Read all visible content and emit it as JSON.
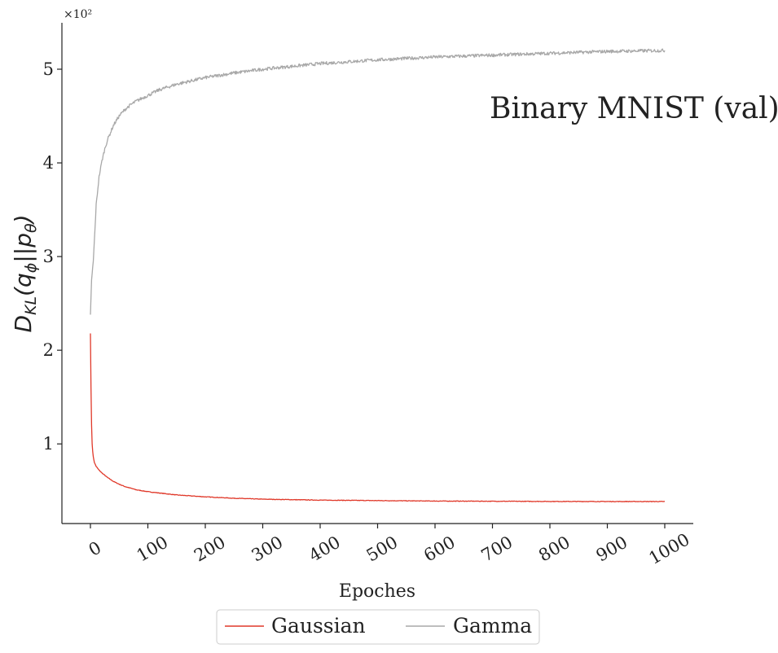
{
  "chart_data": {
    "type": "line",
    "annotation": "Binary MNIST (val)",
    "xlabel": "Epoches",
    "ylabel": {
      "main": "D",
      "sub": "KL",
      "open": "(q",
      "sub2": "ϕ",
      "mid": "||p",
      "sub3": "θ",
      "close": ")"
    },
    "y_scale_label": "×10²",
    "xlim": [
      -50,
      1050
    ],
    "ylim": [
      0.15,
      5.5
    ],
    "x_ticks": [
      0,
      100,
      200,
      300,
      400,
      500,
      600,
      700,
      800,
      900,
      1000
    ],
    "y_ticks": [
      1,
      2,
      3,
      4,
      5
    ],
    "legend_position": "bottom-center",
    "grid": false,
    "series": [
      {
        "name": "Gaussian",
        "color": "#e0392a",
        "x": [
          0,
          1,
          2,
          3,
          4,
          5,
          7,
          10,
          15,
          20,
          30,
          40,
          50,
          60,
          80,
          100,
          150,
          200,
          250,
          300,
          400,
          500,
          600,
          700,
          800,
          900,
          1000
        ],
        "y": [
          2.18,
          1.6,
          1.2,
          1.0,
          0.92,
          0.86,
          0.8,
          0.76,
          0.72,
          0.69,
          0.64,
          0.6,
          0.57,
          0.545,
          0.51,
          0.49,
          0.455,
          0.435,
          0.42,
          0.41,
          0.4,
          0.395,
          0.39,
          0.388,
          0.386,
          0.385,
          0.385
        ]
      },
      {
        "name": "Gamma",
        "color": "#a8a8a8",
        "x": [
          0,
          2,
          5,
          8,
          10,
          15,
          20,
          25,
          30,
          40,
          50,
          60,
          70,
          80,
          100,
          120,
          150,
          200,
          250,
          300,
          350,
          400,
          450,
          500,
          600,
          700,
          800,
          900,
          1000
        ],
        "y": [
          2.38,
          2.75,
          2.95,
          3.3,
          3.55,
          3.85,
          4.02,
          4.15,
          4.25,
          4.4,
          4.5,
          4.57,
          4.62,
          4.66,
          4.72,
          4.78,
          4.84,
          4.91,
          4.96,
          5.0,
          5.03,
          5.06,
          5.08,
          5.1,
          5.13,
          5.15,
          5.17,
          5.19,
          5.2
        ]
      }
    ]
  }
}
